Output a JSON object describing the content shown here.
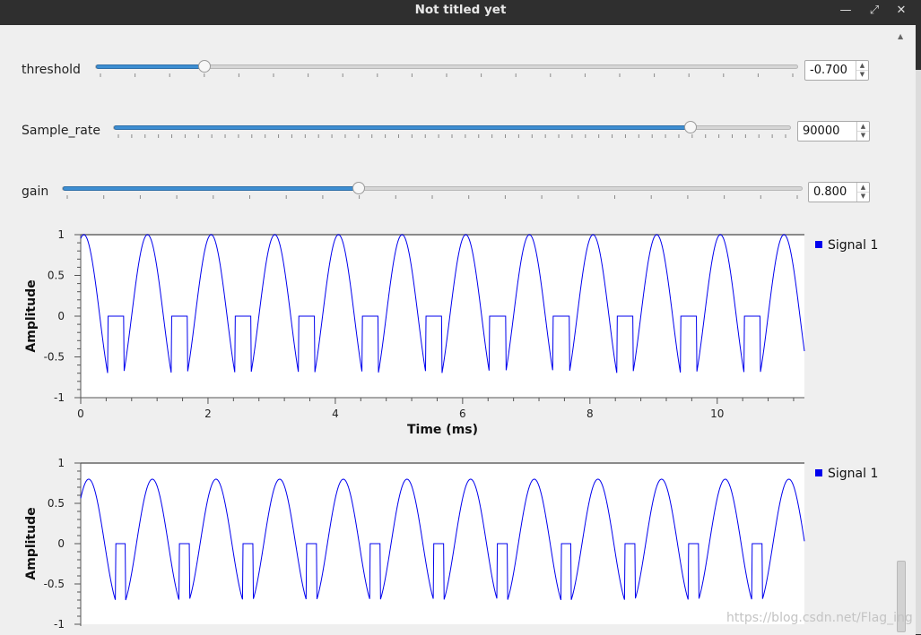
{
  "window": {
    "title": "Not titled yet",
    "buttons": [
      "minimize-icon",
      "maximize-icon",
      "close-icon"
    ]
  },
  "controls": [
    {
      "label": "threshold",
      "value": "-0.700",
      "fraction": 0.154
    },
    {
      "label": "Sample_rate",
      "value": "90000",
      "fraction": 0.85
    },
    {
      "label": "gain",
      "value": "0.800",
      "fraction": 0.4
    }
  ],
  "colors": {
    "signal": "#0000ee",
    "slider_fill": "#3d8ed2"
  },
  "watermark": "https://blog.csdn.net/Flag_ing",
  "chart_data": [
    {
      "type": "line",
      "xlabel": "Time (ms)",
      "ylabel": "Amplitude",
      "x_ticks": [
        "0",
        "2",
        "4",
        "6",
        "8",
        "10"
      ],
      "y_ticks": [
        "1",
        "0.5",
        "0",
        "-0.5",
        "-1"
      ],
      "xlim": [
        0,
        11.37
      ],
      "ylim": [
        -1,
        1
      ],
      "legend": "top-right",
      "series": [
        {
          "name": "Signal 1",
          "function": "sine",
          "amplitude": 1.0,
          "frequency_khz": 1.0,
          "phase_rad": 1.26,
          "threshold": -0.7,
          "below_threshold_value": 0,
          "x_end_ms": 11.37
        }
      ]
    },
    {
      "type": "line",
      "xlabel": "",
      "ylabel": "Amplitude",
      "x_ticks": [],
      "y_ticks": [
        "1",
        "0.5",
        "0",
        "-0.5",
        "-1"
      ],
      "xlim": [
        0,
        11.37
      ],
      "ylim": [
        -1,
        1
      ],
      "legend": "top-right",
      "series": [
        {
          "name": "Signal 1",
          "function": "sine",
          "amplitude": 0.8,
          "frequency_khz": 1.0,
          "phase_rad": 0.78,
          "threshold": -0.7,
          "below_threshold_value": 0,
          "x_end_ms": 11.37
        }
      ]
    }
  ]
}
